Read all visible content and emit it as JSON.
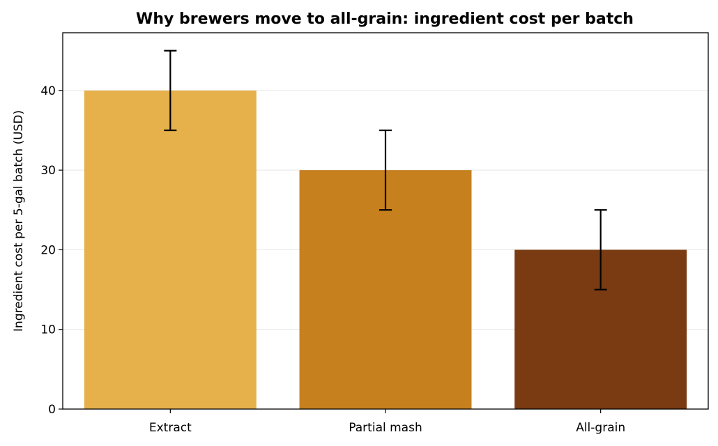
{
  "chart_data": {
    "type": "bar",
    "title": "Why brewers move to all-grain: ingredient cost per batch",
    "xlabel": "",
    "ylabel": "Ingredient cost per 5-gal batch (USD)",
    "categories": [
      "Extract",
      "Partial mash",
      "All-grain"
    ],
    "values": [
      40,
      30,
      20
    ],
    "errors": [
      5,
      5,
      5
    ],
    "colors": [
      "#E6B04B",
      "#C6801E",
      "#7A3B12"
    ],
    "ylim": [
      0,
      47.25
    ],
    "yticks": [
      0,
      10,
      20,
      30,
      40
    ],
    "grid": "y",
    "legend": "none"
  }
}
